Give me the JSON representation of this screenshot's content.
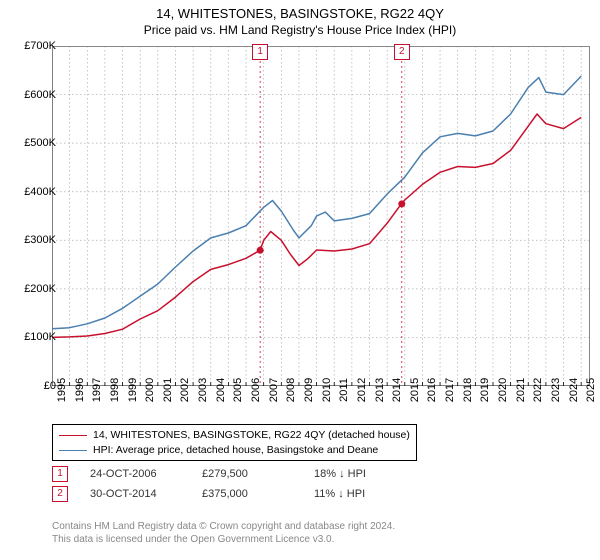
{
  "title_main": "14, WHITESTONES, BASINGSTOKE, RG22 4QY",
  "title_sub": "Price paid vs. HM Land Registry's House Price Index (HPI)",
  "chart": {
    "type": "line",
    "background_color": "#ffffff",
    "grid_color": "#aaaaaa",
    "axis_color": "#888888",
    "xlim": [
      1995,
      2025.5
    ],
    "ylim": [
      0,
      700000
    ],
    "x_ticks": [
      1995,
      1996,
      1997,
      1998,
      1999,
      2000,
      2001,
      2002,
      2003,
      2004,
      2005,
      2006,
      2007,
      2008,
      2009,
      2010,
      2011,
      2012,
      2013,
      2014,
      2015,
      2016,
      2017,
      2018,
      2019,
      2020,
      2021,
      2022,
      2023,
      2024,
      2025
    ],
    "y_ticks": [
      0,
      100000,
      200000,
      300000,
      400000,
      500000,
      600000,
      700000
    ],
    "y_tick_labels": [
      "£0",
      "£100K",
      "£200K",
      "£300K",
      "£400K",
      "£500K",
      "£600K",
      "£700K"
    ],
    "series": [
      {
        "name": "property",
        "color": "#c8102e",
        "width": 1.5,
        "data": [
          [
            1995,
            100000
          ],
          [
            1996,
            101000
          ],
          [
            1997,
            103000
          ],
          [
            1998,
            108000
          ],
          [
            1999,
            117000
          ],
          [
            2000,
            138000
          ],
          [
            2001,
            155000
          ],
          [
            2002,
            183000
          ],
          [
            2003,
            215000
          ],
          [
            2004,
            240000
          ],
          [
            2005,
            250000
          ],
          [
            2006,
            263000
          ],
          [
            2006.8,
            279500
          ],
          [
            2007,
            300000
          ],
          [
            2007.4,
            318000
          ],
          [
            2008,
            300000
          ],
          [
            2008.5,
            272000
          ],
          [
            2009,
            248000
          ],
          [
            2009.5,
            262000
          ],
          [
            2010,
            280000
          ],
          [
            2011,
            278000
          ],
          [
            2012,
            282000
          ],
          [
            2013,
            293000
          ],
          [
            2014,
            335000
          ],
          [
            2014.8,
            375000
          ],
          [
            2015,
            383000
          ],
          [
            2016,
            415000
          ],
          [
            2017,
            440000
          ],
          [
            2018,
            452000
          ],
          [
            2019,
            450000
          ],
          [
            2020,
            458000
          ],
          [
            2021,
            485000
          ],
          [
            2022,
            535000
          ],
          [
            2022.5,
            560000
          ],
          [
            2023,
            540000
          ],
          [
            2024,
            530000
          ],
          [
            2025,
            553000
          ]
        ]
      },
      {
        "name": "hpi",
        "color": "#4a7fb0",
        "width": 1.5,
        "data": [
          [
            1995,
            118000
          ],
          [
            1996,
            120000
          ],
          [
            1997,
            128000
          ],
          [
            1998,
            140000
          ],
          [
            1999,
            160000
          ],
          [
            2000,
            185000
          ],
          [
            2001,
            210000
          ],
          [
            2002,
            245000
          ],
          [
            2003,
            278000
          ],
          [
            2004,
            305000
          ],
          [
            2005,
            315000
          ],
          [
            2006,
            330000
          ],
          [
            2007,
            368000
          ],
          [
            2007.5,
            382000
          ],
          [
            2008,
            360000
          ],
          [
            2008.7,
            320000
          ],
          [
            2009,
            305000
          ],
          [
            2009.7,
            330000
          ],
          [
            2010,
            350000
          ],
          [
            2010.5,
            358000
          ],
          [
            2011,
            340000
          ],
          [
            2012,
            345000
          ],
          [
            2013,
            355000
          ],
          [
            2014,
            395000
          ],
          [
            2015,
            430000
          ],
          [
            2016,
            480000
          ],
          [
            2017,
            513000
          ],
          [
            2018,
            520000
          ],
          [
            2019,
            515000
          ],
          [
            2020,
            525000
          ],
          [
            2021,
            560000
          ],
          [
            2022,
            615000
          ],
          [
            2022.6,
            635000
          ],
          [
            2023,
            605000
          ],
          [
            2024,
            600000
          ],
          [
            2025,
            638000
          ]
        ]
      }
    ],
    "sale_markers": [
      {
        "num": "1",
        "x": 2006.8,
        "y": 279500
      },
      {
        "num": "2",
        "x": 2014.83,
        "y": 375000
      }
    ],
    "point_color": "#c8102e",
    "point_radius": 3.5
  },
  "legend": {
    "items": [
      {
        "color": "#c8102e",
        "label": "14, WHITESTONES, BASINGSTOKE, RG22 4QY (detached house)"
      },
      {
        "color": "#4a7fb0",
        "label": "HPI: Average price, detached house, Basingstoke and Deane"
      }
    ]
  },
  "annotations": [
    {
      "num": "1",
      "date": "24-OCT-2006",
      "price": "£279,500",
      "delta": "18% ↓ HPI"
    },
    {
      "num": "2",
      "date": "30-OCT-2014",
      "price": "£375,000",
      "delta": "11% ↓ HPI"
    }
  ],
  "footer_line1": "Contains HM Land Registry data © Crown copyright and database right 2024.",
  "footer_line2": "This data is licensed under the Open Government Licence v3.0."
}
